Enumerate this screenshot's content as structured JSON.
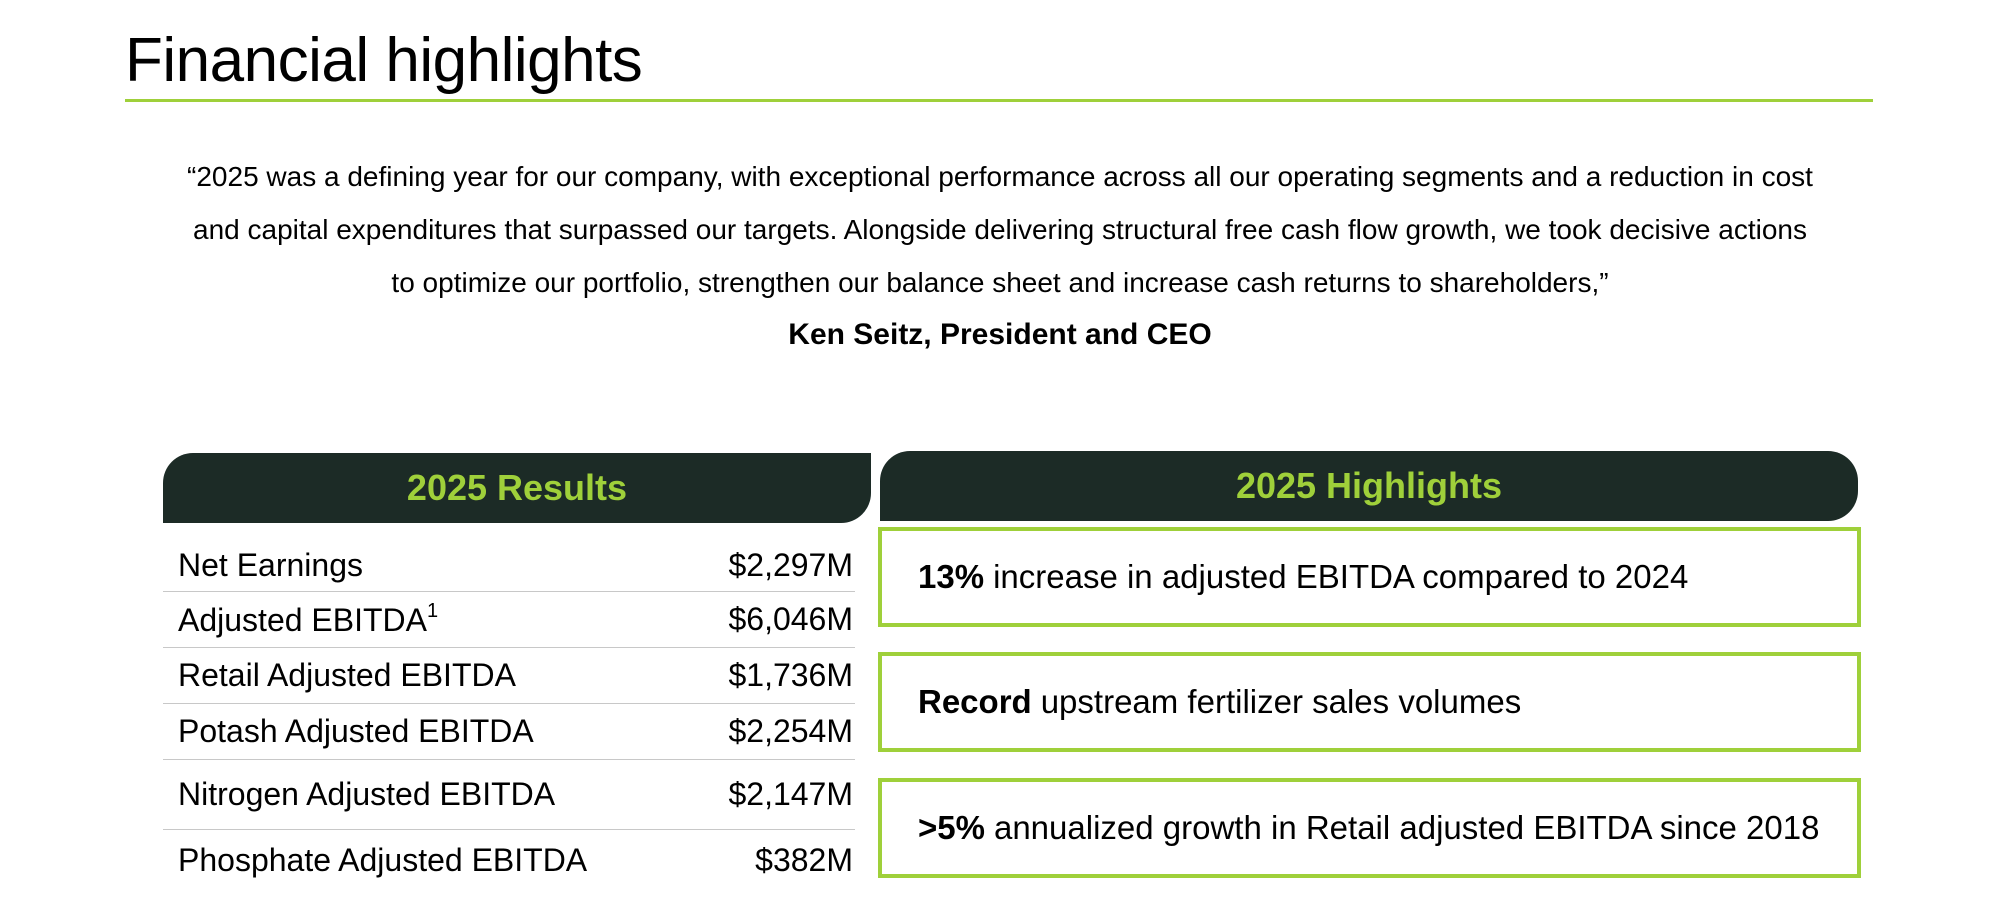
{
  "page": {
    "title": "Financial highlights",
    "quote_line1": "“2025 was a defining year for our company, with exceptional performance across all our operating segments and a reduction in cost",
    "quote_line2": "and capital expenditures that surpassed our targets. Alongside delivering structural free cash flow growth, we took decisive actions",
    "quote_line3": "to optimize our portfolio, strengthen our balance sheet and increase cash returns to shareholders,”",
    "attribution": "Ken Seitz, President and CEO"
  },
  "results": {
    "header": "2025 Results",
    "rows": [
      {
        "label": "Net Earnings",
        "sup": "",
        "value": "$2,297M"
      },
      {
        "label": "Adjusted EBITDA",
        "sup": "1",
        "value": "$6,046M"
      },
      {
        "label": "Retail Adjusted EBITDA",
        "sup": "",
        "value": "$1,736M"
      },
      {
        "label": "Potash Adjusted EBITDA",
        "sup": "",
        "value": "$2,254M"
      },
      {
        "label": "Nitrogen Adjusted EBITDA",
        "sup": "",
        "value": "$2,147M"
      },
      {
        "label": "Phosphate Adjusted EBITDA",
        "sup": "",
        "value": "$382M"
      }
    ]
  },
  "highlights": {
    "header": "2025 Highlights",
    "items": [
      {
        "bold": "13%",
        "text": "increase in adjusted EBITDA compared to 2024"
      },
      {
        "bold": "Record",
        "text": "upstream fertilizer sales volumes"
      },
      {
        "bold": ">5%",
        "text": "annualized growth in Retail adjusted EBITDA since 2018"
      }
    ]
  },
  "colors": {
    "accent_green": "#9fd03a",
    "header_dark": "#1c2b26",
    "divider": "#c8c8c8"
  }
}
